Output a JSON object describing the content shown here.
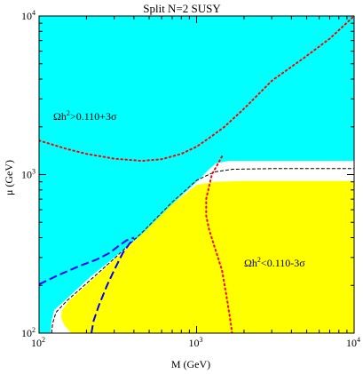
{
  "chart_data": {
    "type": "area",
    "title": "Split N=2 SUSY",
    "xlabel": "M (GeV)",
    "ylabel": "μ (GeV)",
    "x_scale": "log",
    "y_scale": "log",
    "xlim": [
      100,
      10000
    ],
    "ylim": [
      100,
      10000
    ],
    "grid": false,
    "x_ticks": [
      {
        "base": "10",
        "exp": "2",
        "value": 100
      },
      {
        "base": "10",
        "exp": "3",
        "value": 1000
      },
      {
        "base": "10",
        "exp": "4",
        "value": 10000
      }
    ],
    "y_ticks": [
      {
        "base": "10",
        "exp": "2",
        "value": 100
      },
      {
        "base": "10",
        "exp": "3",
        "value": 1000
      },
      {
        "base": "10",
        "exp": "4",
        "value": 10000
      }
    ],
    "regions": [
      {
        "label": "Ωh²>0.110+3σ",
        "color": "#00ffff",
        "boundary": [
          [
            100,
            100
          ],
          [
            100,
            10000
          ],
          [
            10000,
            10000
          ],
          [
            10000,
            1220
          ],
          [
            3000,
            1220
          ],
          [
            1600,
            1220
          ],
          [
            1330,
            1180
          ],
          [
            1200,
            1080
          ],
          [
            1000,
            900
          ],
          [
            700,
            650
          ],
          [
            450,
            420
          ],
          [
            300,
            300
          ],
          [
            210,
            225
          ],
          [
            150,
            165
          ],
          [
            125,
            140
          ],
          [
            120,
            120
          ],
          [
            118,
            100
          ]
        ]
      },
      {
        "label": "Ωh²<0.110-3σ",
        "color": "#ffff00",
        "boundary": [
          [
            160,
            100
          ],
          [
            145,
            112
          ],
          [
            138,
            125
          ],
          [
            140,
            140
          ],
          [
            155,
            160
          ],
          [
            215,
            215
          ],
          [
            300,
            290
          ],
          [
            450,
            420
          ],
          [
            700,
            650
          ],
          [
            1000,
            860
          ],
          [
            1300,
            900
          ],
          [
            2000,
            910
          ],
          [
            10000,
            910
          ],
          [
            10000,
            100
          ]
        ]
      }
    ],
    "series": [
      {
        "style": "black-dashed",
        "color": "#000000",
        "points": [
          [
            120,
            100
          ],
          [
            122,
            115
          ],
          [
            128,
            135
          ],
          [
            150,
            160
          ],
          [
            210,
            215
          ],
          [
            300,
            295
          ],
          [
            450,
            430
          ],
          [
            700,
            670
          ],
          [
            1000,
            920
          ],
          [
            1300,
            1040
          ],
          [
            1700,
            1080
          ],
          [
            3000,
            1090
          ],
          [
            10000,
            1090
          ]
        ]
      },
      {
        "style": "blue-dashed-lower",
        "color": "#0000ff",
        "points": [
          [
            100,
            203
          ],
          [
            130,
            230
          ],
          [
            180,
            265
          ],
          [
            230,
            290
          ],
          [
            280,
            320
          ],
          [
            320,
            355
          ],
          [
            360,
            385
          ],
          [
            400,
            400
          ]
        ]
      },
      {
        "style": "blue-dashed-upper",
        "color": "#0000ff",
        "points": [
          [
            215,
            100
          ],
          [
            222,
            120
          ],
          [
            240,
            150
          ],
          [
            270,
            200
          ],
          [
            300,
            250
          ],
          [
            340,
            320
          ],
          [
            400,
            400
          ]
        ]
      },
      {
        "style": "red-dotted-upper",
        "color": "#ff0000",
        "points": [
          [
            100,
            1640
          ],
          [
            150,
            1450
          ],
          [
            200,
            1350
          ],
          [
            300,
            1260
          ],
          [
            450,
            1220
          ],
          [
            600,
            1250
          ],
          [
            800,
            1350
          ],
          [
            1000,
            1500
          ],
          [
            1200,
            1700
          ],
          [
            1500,
            2000
          ],
          [
            2000,
            2600
          ],
          [
            3000,
            3900
          ],
          [
            5000,
            5600
          ],
          [
            7000,
            7200
          ],
          [
            10000,
            10000
          ]
        ]
      },
      {
        "style": "red-dotted-lower",
        "color": "#ff0000",
        "points": [
          [
            1450,
            1300
          ],
          [
            1250,
            1000
          ],
          [
            1150,
            700
          ],
          [
            1150,
            550
          ],
          [
            1200,
            450
          ],
          [
            1300,
            350
          ],
          [
            1450,
            250
          ],
          [
            1550,
            170
          ],
          [
            1640,
            120
          ],
          [
            1680,
            100
          ]
        ]
      }
    ],
    "annotations": [
      {
        "id": "upper",
        "prefix": "Ωh",
        "sup": "2",
        "suffix": ">0.110+3σ"
      },
      {
        "id": "lower",
        "prefix": "Ωh",
        "sup": "2",
        "suffix": "<0.110-3σ"
      }
    ]
  }
}
